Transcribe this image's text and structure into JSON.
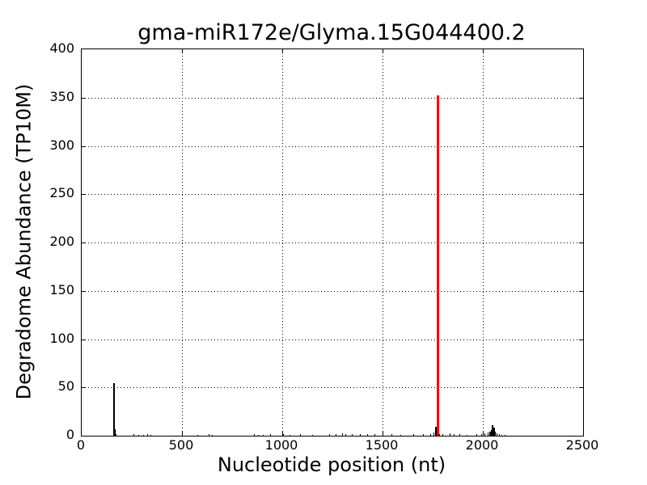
{
  "figure": {
    "background": "#ffffff",
    "foreground": "#000000"
  },
  "chart_data": {
    "type": "bar",
    "subtype": "stem-degradome-plot",
    "title": "gma-miR172e/Glyma.15G044400.2",
    "xlabel": "Nucleotide position (nt)",
    "ylabel": "Degradome Abundance (TP10M)",
    "xlim": [
      0,
      2500
    ],
    "ylim": [
      0,
      400
    ],
    "x_ticks": [
      0,
      500,
      1000,
      1500,
      2000,
      2500
    ],
    "y_ticks": [
      0,
      50,
      100,
      150,
      200,
      250,
      300,
      350,
      400
    ],
    "grid": {
      "style": "dotted",
      "color": "#000000",
      "x": [
        500,
        1000,
        1500,
        2000
      ],
      "y": [
        50,
        100,
        150,
        200,
        250,
        300,
        350
      ]
    },
    "legend": "none",
    "series": [
      {
        "name": "degradome-signal",
        "color": "#000000",
        "comment": "points are [nucleotide_position, abundance_TP10M, bar_width_px]",
        "points": [
          [
            161,
            54,
            2
          ],
          [
            164,
            7,
            2
          ],
          [
            166,
            4,
            2
          ],
          [
            169,
            1.5,
            2
          ],
          [
            262,
            1.5,
            1
          ],
          [
            285,
            1,
            1
          ],
          [
            310,
            1,
            1
          ],
          [
            330,
            1.5,
            1
          ],
          [
            345,
            1,
            1
          ],
          [
            580,
            1,
            1
          ],
          [
            635,
            2,
            1
          ],
          [
            650,
            1,
            1
          ],
          [
            860,
            1.5,
            1
          ],
          [
            880,
            1,
            1
          ],
          [
            905,
            1,
            1
          ],
          [
            940,
            1.5,
            1
          ],
          [
            1005,
            2,
            1
          ],
          [
            1040,
            1,
            1
          ],
          [
            1090,
            1.5,
            1
          ],
          [
            1150,
            1,
            1
          ],
          [
            1235,
            1.5,
            1
          ],
          [
            1270,
            2,
            1
          ],
          [
            1300,
            2.5,
            1
          ],
          [
            1315,
            2,
            1
          ],
          [
            1350,
            2,
            1
          ],
          [
            1390,
            1.5,
            1
          ],
          [
            1425,
            2,
            1
          ],
          [
            1460,
            1.5,
            1
          ],
          [
            1545,
            1.5,
            1
          ],
          [
            1590,
            1,
            1
          ],
          [
            1655,
            1.5,
            1
          ],
          [
            1705,
            2,
            1
          ],
          [
            1740,
            2,
            1
          ],
          [
            1756,
            3,
            1
          ],
          [
            1766,
            9,
            2
          ],
          [
            1771,
            4,
            1
          ],
          [
            1785,
            2,
            1
          ],
          [
            1800,
            2,
            1
          ],
          [
            1835,
            2.5,
            1
          ],
          [
            1856,
            2,
            1
          ],
          [
            1885,
            1.5,
            1
          ],
          [
            1920,
            1,
            1
          ],
          [
            1970,
            2,
            1
          ],
          [
            1992,
            2,
            1
          ],
          [
            2012,
            2.5,
            1
          ],
          [
            2028,
            3,
            1
          ],
          [
            2036,
            4,
            2
          ],
          [
            2044,
            6,
            2
          ],
          [
            2050,
            11,
            2
          ],
          [
            2056,
            8,
            2
          ],
          [
            2062,
            4,
            2
          ],
          [
            2070,
            2.5,
            1
          ],
          [
            2082,
            2,
            1
          ],
          [
            2095,
            1,
            1
          ],
          [
            2110,
            1,
            1
          ]
        ]
      },
      {
        "name": "mirna-cleavage-site",
        "color": "#ff0000",
        "comment": "highlighted cleavage peak",
        "points": [
          [
            1778,
            352,
            3
          ]
        ]
      }
    ]
  }
}
